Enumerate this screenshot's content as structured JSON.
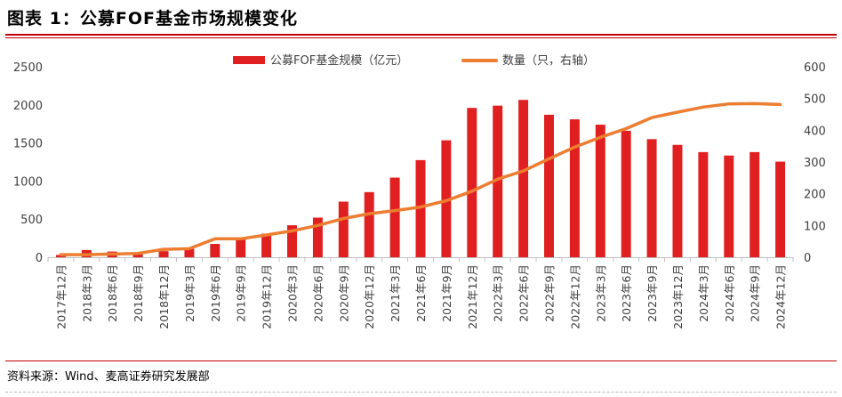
{
  "header": {
    "title": "图表 1：公募FOF基金市场规模变化"
  },
  "footer": {
    "source": "资料来源：Wind、麦高证券研究发展部"
  },
  "chart_data": {
    "type": "bar",
    "title": "",
    "categories": [
      "2017年12月",
      "2018年3月",
      "2018年6月",
      "2018年9月",
      "2018年12月",
      "2019年3月",
      "2019年6月",
      "2019年9月",
      "2019年12月",
      "2020年3月",
      "2020年6月",
      "2020年9月",
      "2020年12月",
      "2021年3月",
      "2021年6月",
      "2021年9月",
      "2021年12月",
      "2022年3月",
      "2022年6月",
      "2022年9月",
      "2022年12月",
      "2023年3月",
      "2023年6月",
      "2023年9月",
      "2023年12月",
      "2024年3月",
      "2024年6月",
      "2024年9月",
      "2024年12月"
    ],
    "series": [
      {
        "name": "公募FOF基金规模（亿元）",
        "type": "bar",
        "axis": "left",
        "color": "#e02020",
        "values": [
          30,
          95,
          75,
          55,
          80,
          110,
          175,
          250,
          310,
          420,
          520,
          730,
          855,
          1045,
          1275,
          1535,
          1960,
          1990,
          2065,
          1870,
          1810,
          1740,
          1660,
          1550,
          1475,
          1380,
          1335,
          1380,
          1255
        ]
      },
      {
        "name": "数量（只，右轴）",
        "type": "line",
        "axis": "right",
        "color": "#ed7d31",
        "values": [
          8,
          8,
          10,
          12,
          25,
          27,
          58,
          58,
          70,
          83,
          100,
          122,
          137,
          147,
          158,
          178,
          208,
          246,
          272,
          310,
          347,
          378,
          405,
          440,
          457,
          473,
          483,
          484,
          481
        ]
      }
    ],
    "y_left": {
      "ticks": [
        0,
        500,
        1000,
        1500,
        2000,
        2500
      ],
      "ylim": [
        0,
        2500
      ]
    },
    "y_right": {
      "ticks": [
        0,
        100,
        200,
        300,
        400,
        500,
        600
      ],
      "ylim": [
        0,
        600
      ]
    },
    "grid": false,
    "legend_position": "top-center"
  }
}
